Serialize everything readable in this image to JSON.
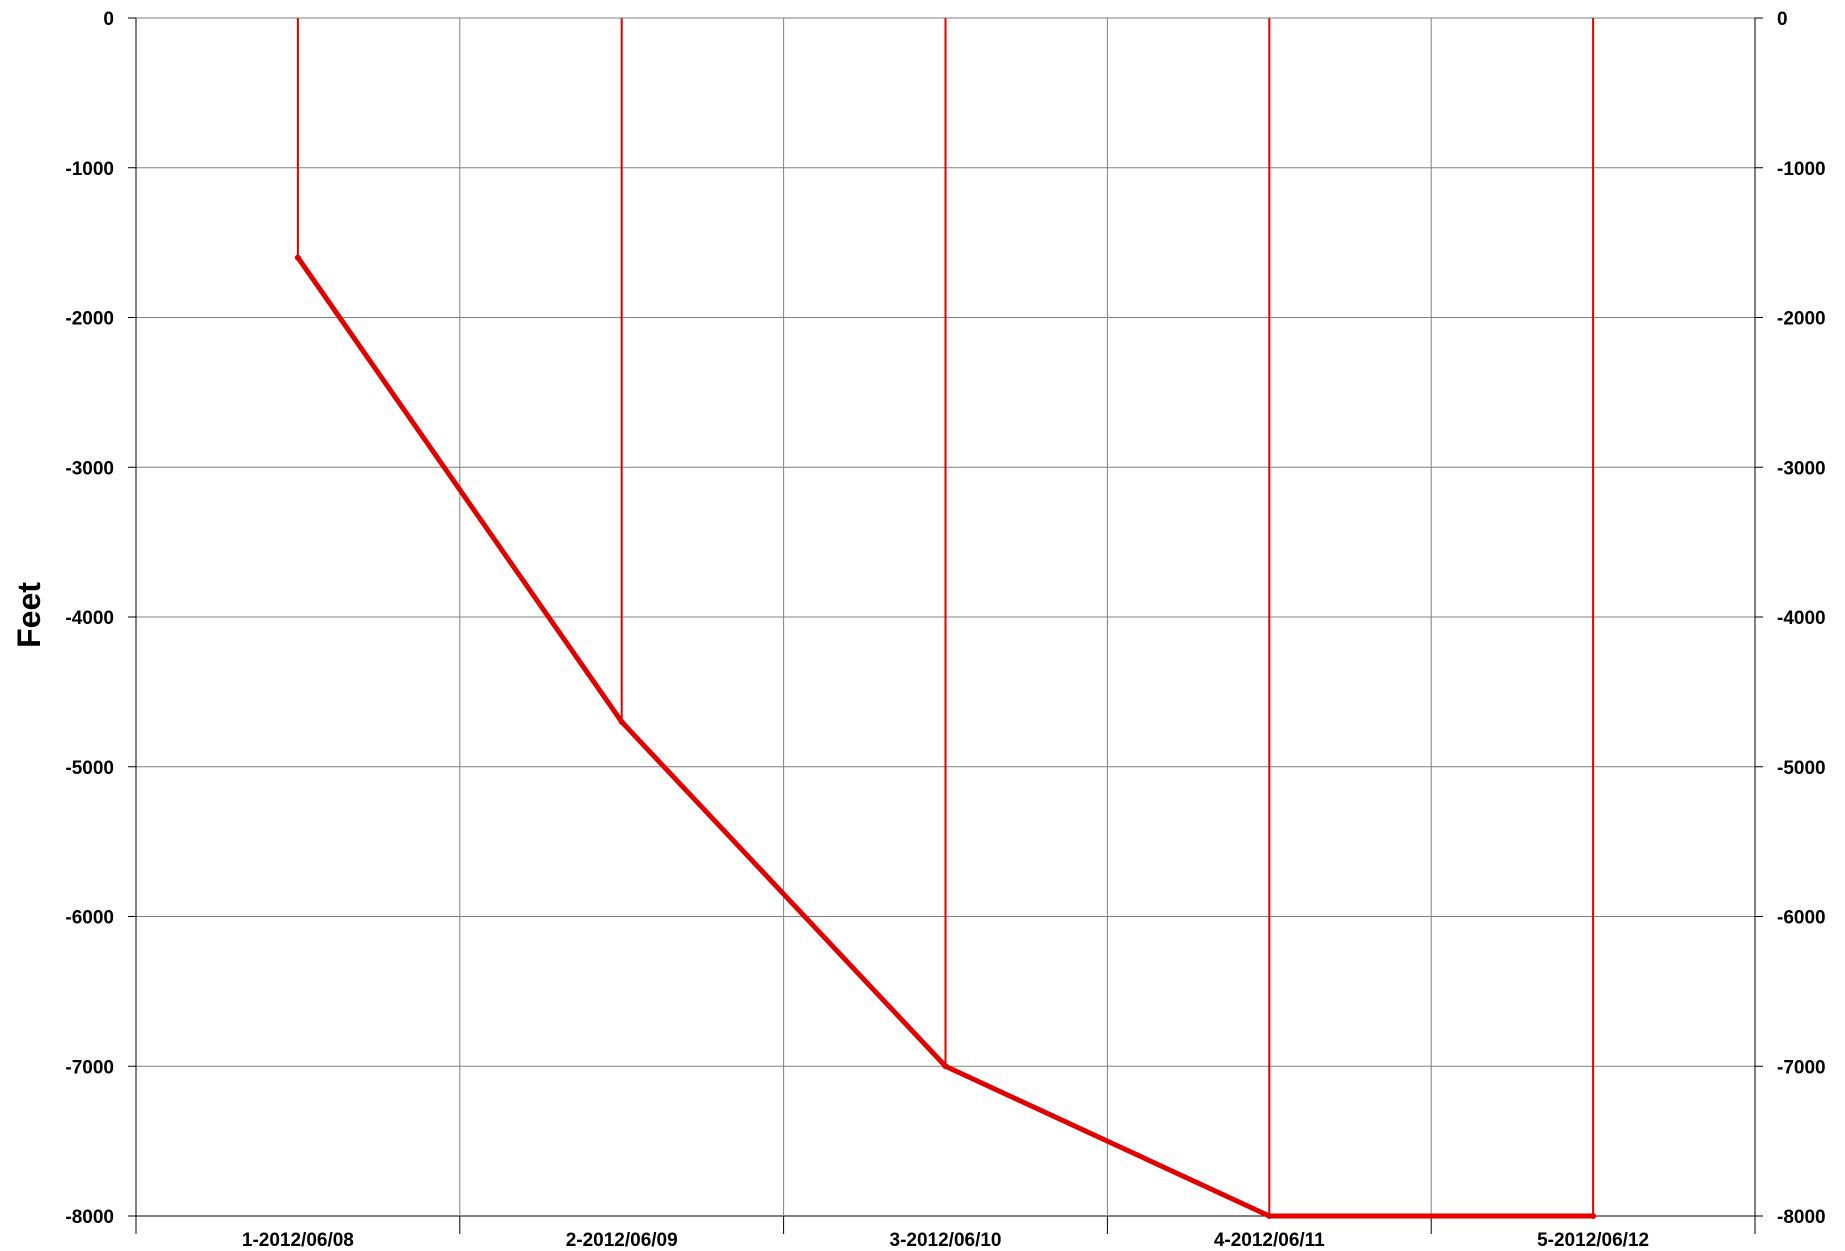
{
  "chart_data": {
    "type": "line",
    "title": "",
    "xlabel": "",
    "ylabel": "Feet",
    "categories": [
      "1-2012/06/08",
      "2-2012/06/09",
      "3-2012/06/10",
      "4-2012/06/11",
      "5-2012/06/12"
    ],
    "series": [
      {
        "values": [
          -1600,
          -4700,
          -7000,
          -8000,
          -8000
        ],
        "color": "#e00000"
      }
    ],
    "ylim": [
      -8000,
      0
    ],
    "yticks": [
      0,
      -1000,
      -2000,
      -3000,
      -4000,
      -5000,
      -6000,
      -7000,
      -8000
    ],
    "ytick_labels": [
      "0",
      "-1000",
      "-2000",
      "-3000",
      "-4000",
      "-5000",
      "-6000",
      "-7000",
      "-8000"
    ],
    "secondary_y_axis": true,
    "drop_lines": true,
    "grid": true,
    "legend": "none",
    "colors": {
      "series": "#e00000",
      "grid": "#808080",
      "axis": "#000000"
    }
  }
}
